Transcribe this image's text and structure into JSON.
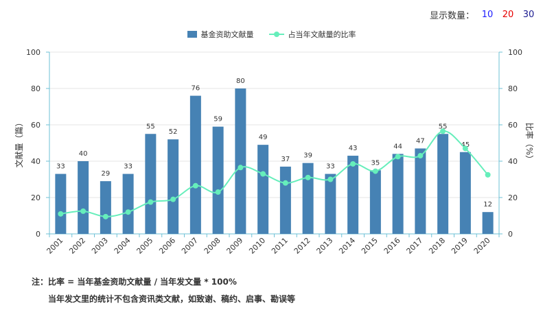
{
  "display_count": {
    "label": "显示数量：",
    "options": [
      "10",
      "20",
      "30"
    ]
  },
  "colors": {
    "bar": "#4682b4",
    "line": "#66eebb",
    "axis": "#6cc0d6",
    "grid": "#e6e6e6",
    "text": "#333333"
  },
  "notes": {
    "line1": "注：比率 = 当年基金资助文献量 / 当年发文量 * 100%",
    "line2": "当年发文里的统计不包含资讯类文献，如致谢、稿约、启事、勘误等"
  },
  "chart_data": {
    "type": "bar",
    "categories": [
      "2001",
      "2002",
      "2003",
      "2004",
      "2005",
      "2006",
      "2007",
      "2008",
      "2009",
      "2010",
      "2011",
      "2012",
      "2013",
      "2014",
      "2015",
      "2016",
      "2017",
      "2018",
      "2019",
      "2020"
    ],
    "series": [
      {
        "name": "基金资助文献量",
        "type": "bar",
        "axis": "left",
        "values": [
          33,
          40,
          29,
          33,
          55,
          52,
          76,
          59,
          80,
          49,
          37,
          39,
          33,
          43,
          35,
          44,
          47,
          55,
          45,
          12
        ]
      },
      {
        "name": "占当年文献量的比率",
        "type": "line",
        "axis": "right",
        "values": [
          11,
          12.5,
          9.5,
          12,
          17.5,
          19,
          26.5,
          23,
          36.5,
          33,
          28,
          31,
          30,
          38.5,
          34.5,
          42.5,
          43,
          56.5,
          47,
          32.5
        ]
      }
    ],
    "ylabel": "文献量（篇）",
    "y2label": "比率（%）",
    "ylim": [
      0,
      100
    ],
    "y2lim": [
      0,
      100
    ],
    "yticks": [
      0,
      20,
      40,
      60,
      80,
      100
    ],
    "show_bar_labels": true,
    "grid": true,
    "legend_position": "top"
  }
}
